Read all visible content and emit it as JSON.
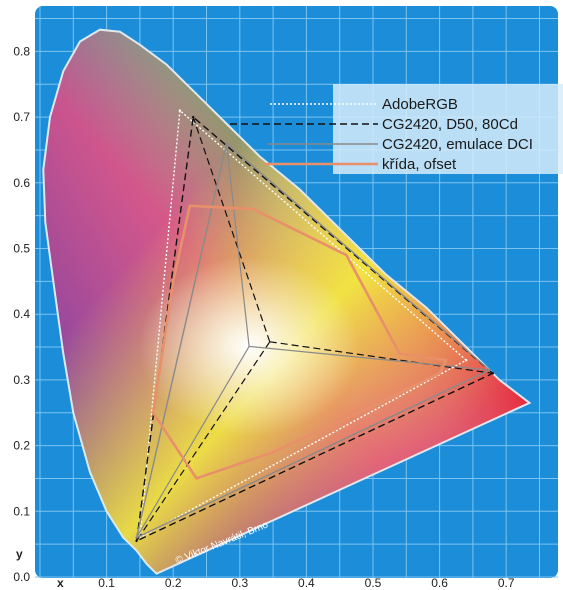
{
  "chart_data": {
    "type": "scatter",
    "subtype": "CIE 1931 xy chromaticity diagram with gamut triangles",
    "xlabel": "x",
    "ylabel": "y",
    "xlim": [
      0.0,
      0.8
    ],
    "ylim": [
      0.0,
      0.85
    ],
    "x_ticks": [
      "0.1",
      "0.2",
      "0.3",
      "0.4",
      "0.5",
      "0.6",
      "0.7"
    ],
    "x_tick_values": [
      0.1,
      0.2,
      0.3,
      0.4,
      0.5,
      0.6,
      0.7
    ],
    "y_ticks": [
      "0.0",
      "0.1",
      "0.2",
      "0.3",
      "0.4",
      "0.5",
      "0.6",
      "0.7",
      "0.8"
    ],
    "y_tick_values": [
      0.0,
      0.1,
      0.2,
      0.3,
      0.4,
      0.5,
      0.6,
      0.7,
      0.8
    ],
    "grid": true,
    "legend_position": "top-right",
    "background_color": "#1c8ed9",
    "grid_color": "#7cc3ef",
    "credit": "© Viktor Navrátil, Brno",
    "spectral_locus": [
      [
        0.175,
        0.005
      ],
      [
        0.17,
        0.01
      ],
      [
        0.16,
        0.02
      ],
      [
        0.145,
        0.04
      ],
      [
        0.125,
        0.06
      ],
      [
        0.1,
        0.1
      ],
      [
        0.075,
        0.16
      ],
      [
        0.05,
        0.25
      ],
      [
        0.035,
        0.34
      ],
      [
        0.02,
        0.45
      ],
      [
        0.008,
        0.54
      ],
      [
        0.005,
        0.62
      ],
      [
        0.015,
        0.7
      ],
      [
        0.035,
        0.77
      ],
      [
        0.06,
        0.815
      ],
      [
        0.09,
        0.833
      ],
      [
        0.12,
        0.83
      ],
      [
        0.15,
        0.81
      ],
      [
        0.19,
        0.78
      ],
      [
        0.23,
        0.74
      ],
      [
        0.27,
        0.7
      ],
      [
        0.33,
        0.64
      ],
      [
        0.39,
        0.59
      ],
      [
        0.45,
        0.53
      ],
      [
        0.52,
        0.46
      ],
      [
        0.58,
        0.41
      ],
      [
        0.64,
        0.35
      ],
      [
        0.69,
        0.3
      ],
      [
        0.735,
        0.265
      ]
    ],
    "series": [
      {
        "name": "AdobeRGB",
        "color": "#ffffff",
        "style": "dotted",
        "points": [
          [
            0.64,
            0.33
          ],
          [
            0.21,
            0.71
          ],
          [
            0.15,
            0.06
          ]
        ]
      },
      {
        "name": "CG2420, D50, 80Cd",
        "color": "#111111",
        "style": "dashed",
        "points": [
          [
            0.68,
            0.31
          ],
          [
            0.23,
            0.7
          ],
          [
            0.145,
            0.055
          ]
        ]
      },
      {
        "name": "CG2420, emulace DCI",
        "color": "#8a8a8a",
        "style": "solid",
        "points": [
          [
            0.675,
            0.315
          ],
          [
            0.28,
            0.66
          ],
          [
            0.145,
            0.06
          ]
        ]
      },
      {
        "name": "křída, ofset",
        "color": "#e8906a",
        "style": "solid",
        "points": [
          [
            0.61,
            0.33
          ],
          [
            0.54,
            0.34
          ],
          [
            0.46,
            0.49
          ],
          [
            0.32,
            0.56
          ],
          [
            0.225,
            0.565
          ],
          [
            0.2,
            0.45
          ],
          [
            0.17,
            0.25
          ],
          [
            0.235,
            0.15
          ],
          [
            0.35,
            0.19
          ],
          [
            0.5,
            0.26
          ],
          [
            0.6,
            0.31
          ]
        ]
      }
    ],
    "legend_entries": [
      {
        "name": "AdobeRGB",
        "color": "#ffffff",
        "style": "dotted"
      },
      {
        "name": "CG2420, D50, 80Cd",
        "color": "#111111",
        "style": "dashed"
      },
      {
        "name": "CG2420, emulace DCI",
        "color": "#8a8a8a",
        "style": "solid"
      },
      {
        "name": "křída, ofset",
        "color": "#e8906a",
        "style": "solid"
      }
    ],
    "white_points": [
      {
        "series": "CG2420, D50, 80Cd",
        "point": [
          0.345,
          0.358
        ]
      },
      {
        "series": "CG2420, emulace DCI",
        "point": [
          0.314,
          0.351
        ]
      }
    ]
  }
}
